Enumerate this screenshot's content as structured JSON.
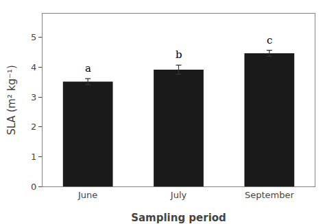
{
  "chart_data": {
    "type": "bar",
    "categories": [
      "June",
      "July",
      "September"
    ],
    "values": [
      3.52,
      3.92,
      4.47
    ],
    "errors": [
      0.1,
      0.15,
      0.1
    ],
    "annotations": [
      "a",
      "b",
      "c"
    ],
    "color": "#1a1a1a",
    "xlabel": "Sampling period",
    "ylabel": "SLA (m² kg⁻¹)",
    "ylim": [
      0,
      5.8
    ],
    "yticks": [
      0,
      1,
      2,
      3,
      4,
      5
    ],
    "grid": false
  }
}
